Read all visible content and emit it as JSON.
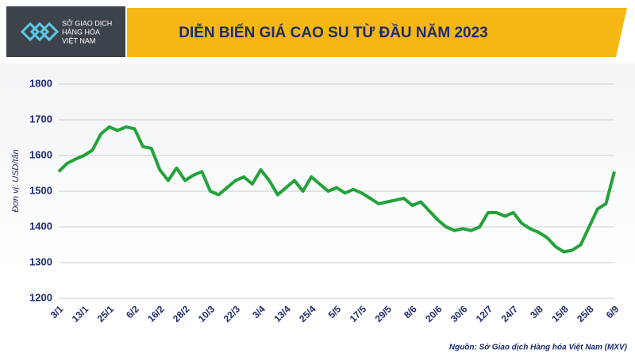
{
  "header": {
    "logo_lines": [
      "SỞ GIAO DỊCH",
      "HÀNG HÓA",
      "VIỆT NAM"
    ]
  },
  "source": "Nguồn: Sở Giao dịch Hàng hóa Việt Nam (MXV)",
  "chart_data": {
    "type": "line",
    "title": "DIỄN BIẾN GIÁ CAO SU TỪ ĐẦU NĂM 2023",
    "y_label": "Đơn vị: USD/tấn",
    "color": "#23a23a",
    "grid": true,
    "ylim": [
      1200,
      1800
    ],
    "yticks": [
      1200,
      1300,
      1400,
      1500,
      1600,
      1700,
      1800
    ],
    "categories": [
      "3/1",
      null,
      null,
      "13/1",
      null,
      null,
      "25/1",
      null,
      null,
      "6/2",
      null,
      null,
      "16/2",
      null,
      null,
      "28/2",
      null,
      null,
      "10/3",
      null,
      null,
      "22/3",
      null,
      null,
      "3/4",
      null,
      null,
      "13/4",
      null,
      null,
      "25/4",
      null,
      null,
      "5/5",
      null,
      null,
      "17/5",
      null,
      null,
      "29/5",
      null,
      null,
      "8/6",
      null,
      null,
      "20/6",
      null,
      null,
      "30/6",
      null,
      null,
      "12/7",
      null,
      null,
      "24/7",
      null,
      null,
      "3/8",
      null,
      null,
      "15/8",
      null,
      null,
      "25/8",
      null,
      null,
      "6/9"
    ],
    "values": [
      1555,
      1578,
      1590,
      1600,
      1615,
      1660,
      1680,
      1670,
      1680,
      1675,
      1625,
      1620,
      1560,
      1530,
      1565,
      1530,
      1545,
      1555,
      1500,
      1490,
      1510,
      1530,
      1540,
      1520,
      1560,
      1530,
      1490,
      1510,
      1530,
      1500,
      1540,
      1520,
      1500,
      1510,
      1495,
      1505,
      1495,
      1480,
      1465,
      1470,
      1475,
      1480,
      1460,
      1470,
      1445,
      1420,
      1400,
      1390,
      1395,
      1390,
      1400,
      1440,
      1440,
      1430,
      1440,
      1410,
      1395,
      1385,
      1370,
      1345,
      1330,
      1335,
      1350,
      1400,
      1450,
      1465,
      1555
    ]
  }
}
